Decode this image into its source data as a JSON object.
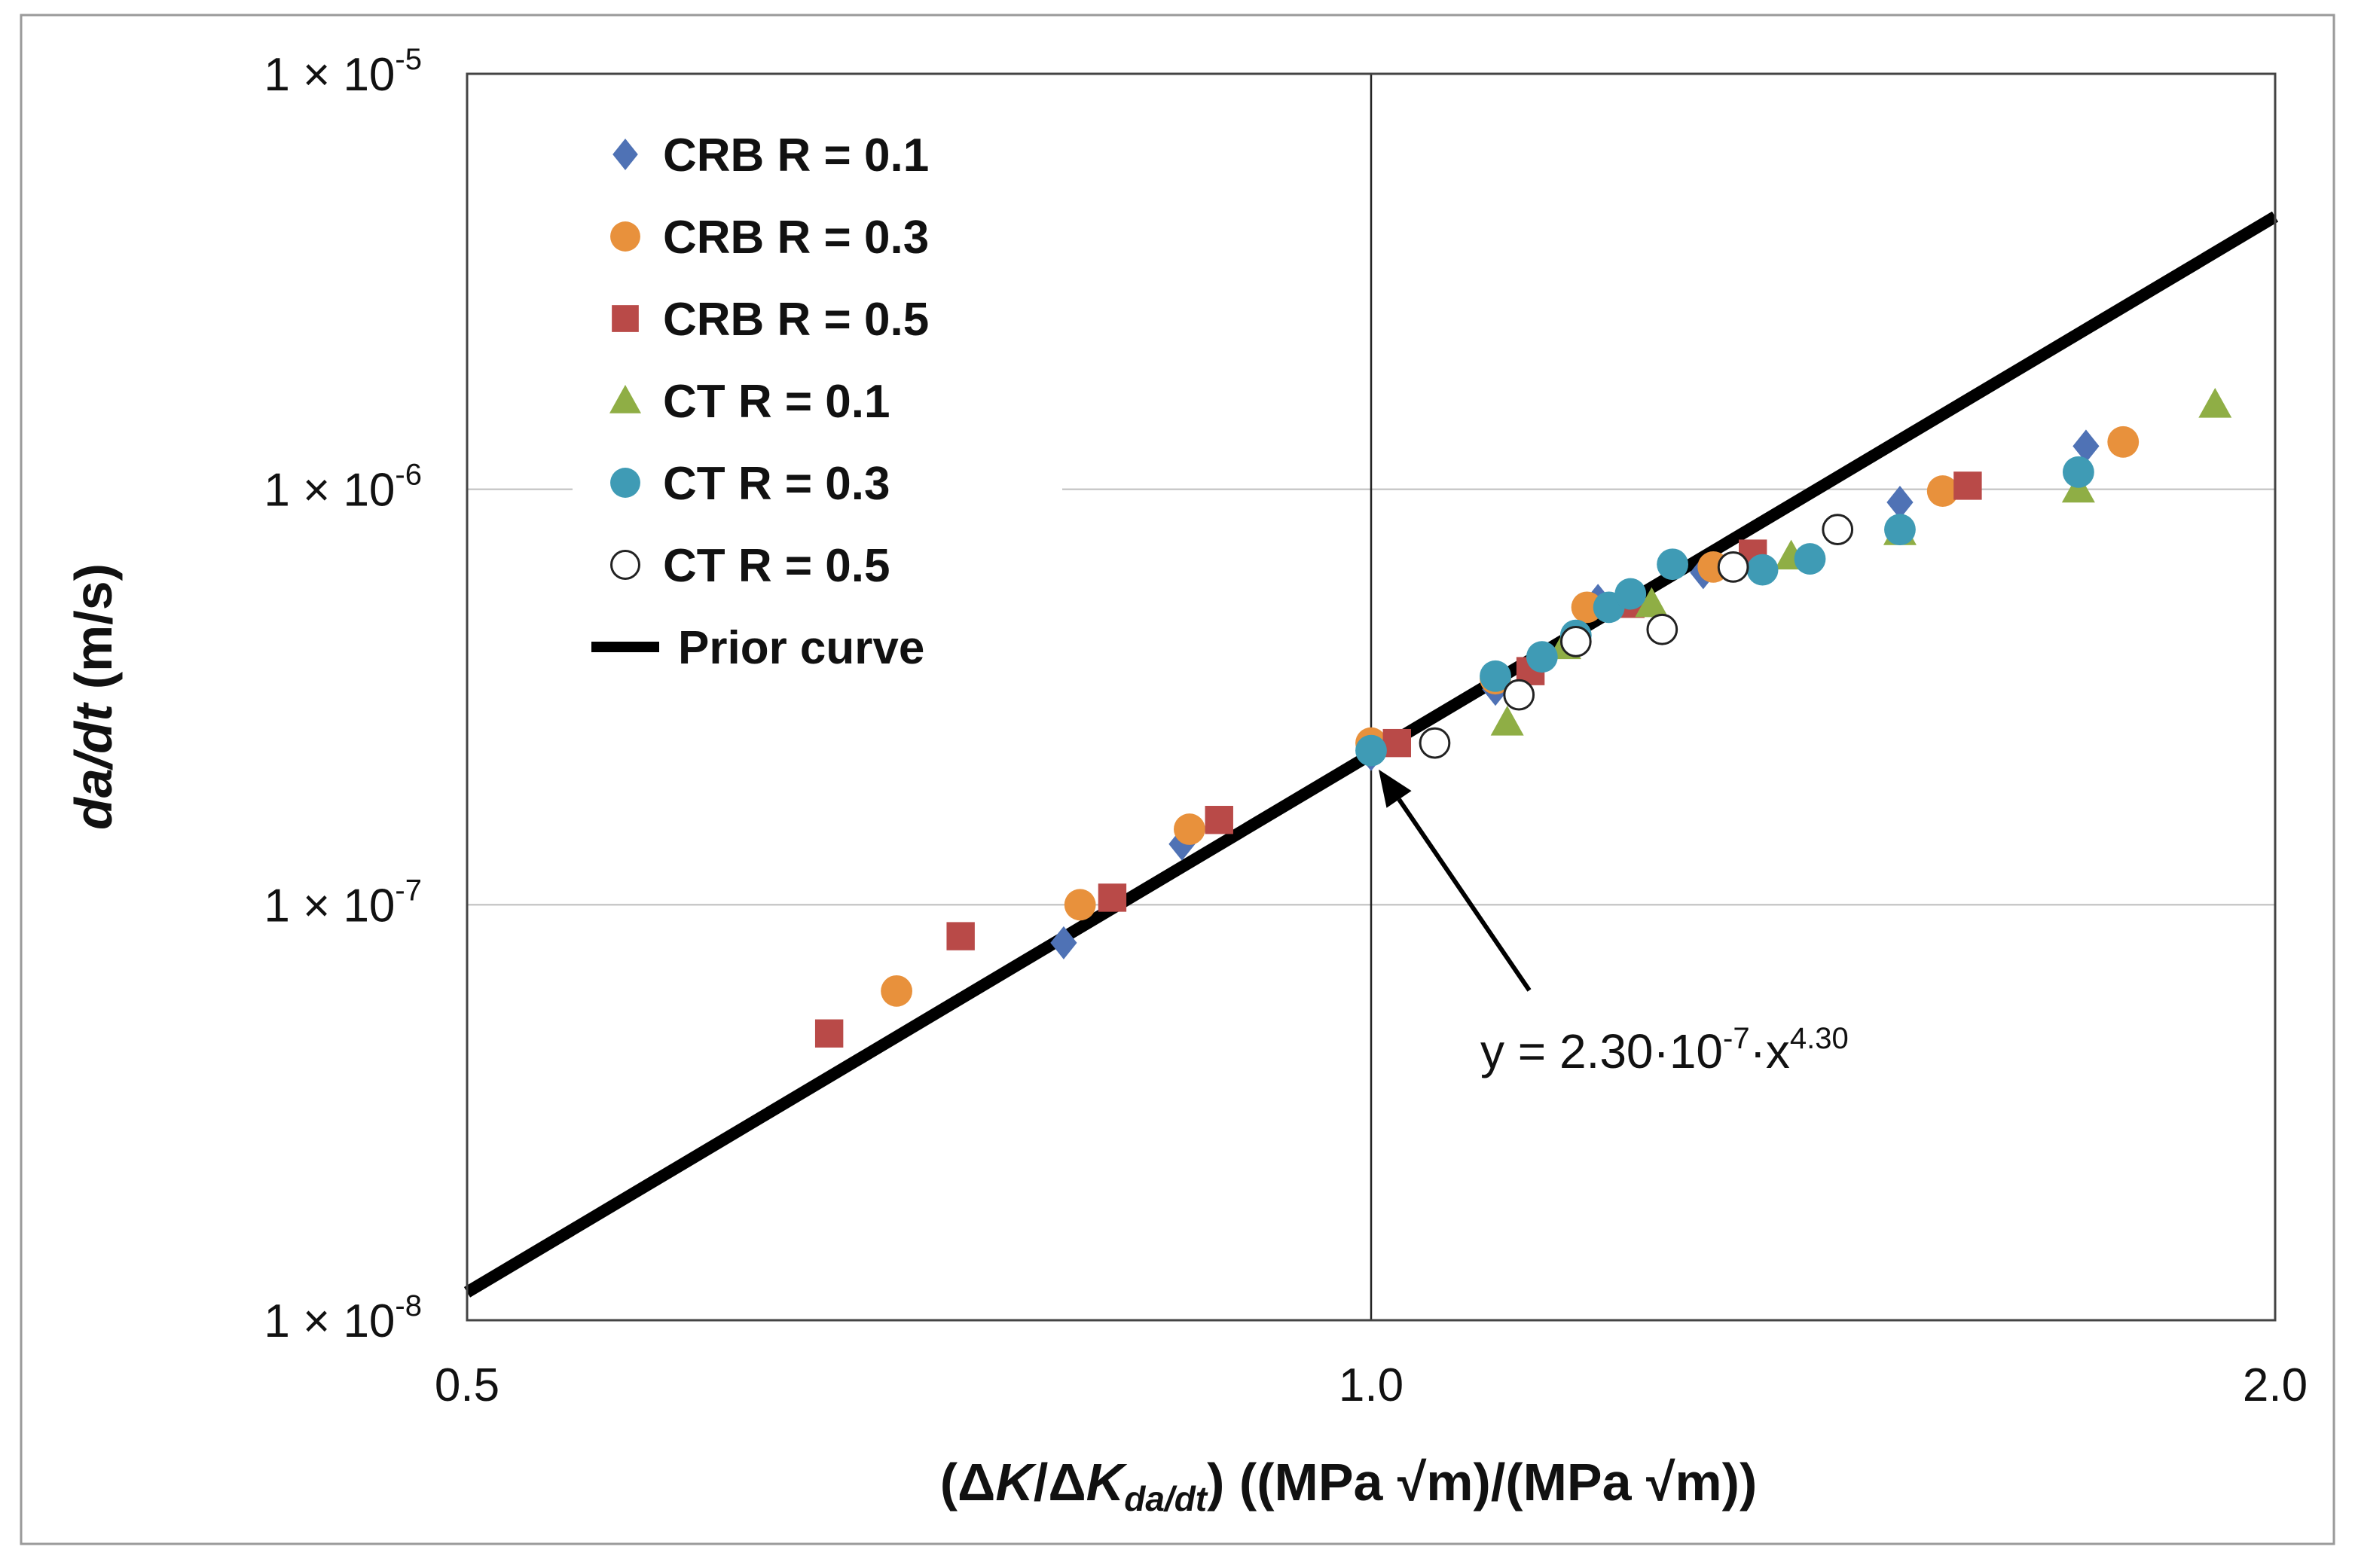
{
  "chart_data": {
    "type": "scatter",
    "x_scale": "log",
    "y_scale": "log",
    "xlim": [
      0.5,
      2.0
    ],
    "ylim": [
      1e-08,
      1e-05
    ],
    "x_ticks": [
      {
        "value": 0.5,
        "label": "0.5"
      },
      {
        "value": 1.0,
        "label": "1.0"
      },
      {
        "value": 2.0,
        "label": "2.0"
      }
    ],
    "y_ticks": [
      {
        "value": 1e-05,
        "mantissa": "1 × 10",
        "exponent": "-5"
      },
      {
        "value": 1e-06,
        "mantissa": "1 × 10",
        "exponent": "-6"
      },
      {
        "value": 1e-07,
        "mantissa": "1 × 10",
        "exponent": "-7"
      },
      {
        "value": 1e-08,
        "mantissa": "1 × 10",
        "exponent": "-8"
      }
    ],
    "ylabel": {
      "italic": "da/dt",
      "rest": " (m/s)"
    },
    "xlabel": {
      "parts": [
        "(Δ",
        "K",
        "/Δ",
        "K",
        "da/dt",
        ") ((MPa √m)/(MPa √m))"
      ]
    },
    "grid": "major",
    "legend_position": "top-left",
    "series": [
      {
        "name": "CRB R = 0.1",
        "marker": "diamond",
        "color": "#4f72b5",
        "points": [
          [
            0.79,
            8.1e-08
          ],
          [
            0.865,
            1.4e-07
          ],
          [
            1.0,
            2.3e-07
          ],
          [
            1.1,
            3.3e-07
          ],
          [
            1.19,
            5.4e-07
          ],
          [
            1.29,
            6.3e-07
          ],
          [
            1.5,
            9.3e-07
          ],
          [
            1.73,
            1.27e-06
          ]
        ]
      },
      {
        "name": "CRB R = 0.3",
        "marker": "circle",
        "color": "#e8913c",
        "points": [
          [
            0.695,
            6.2e-08
          ],
          [
            0.8,
            1e-07
          ],
          [
            0.87,
            1.52e-07
          ],
          [
            1.0,
            2.45e-07
          ],
          [
            1.1,
            3.5e-07
          ],
          [
            1.18,
            5.2e-07
          ],
          [
            1.3,
            6.5e-07
          ],
          [
            1.55,
            9.9e-07
          ],
          [
            1.78,
            1.3e-06
          ]
        ]
      },
      {
        "name": "CRB R = 0.5",
        "marker": "square",
        "color": "#b94a48",
        "points": [
          [
            0.66,
            4.9e-08
          ],
          [
            0.73,
            8.4e-08
          ],
          [
            0.82,
            1.04e-07
          ],
          [
            0.89,
            1.6e-07
          ],
          [
            1.02,
            2.45e-07
          ],
          [
            1.13,
            3.65e-07
          ],
          [
            1.22,
            5.3e-07
          ],
          [
            1.34,
            7e-07
          ],
          [
            1.58,
            1.02e-06
          ]
        ]
      },
      {
        "name": "CT R = 0.1",
        "marker": "triangle",
        "color": "#8fae45",
        "points": [
          [
            1.11,
            2.75e-07
          ],
          [
            1.16,
            4.2e-07
          ],
          [
            1.24,
            5.3e-07
          ],
          [
            1.38,
            6.9e-07
          ],
          [
            1.5,
            7.9e-07
          ],
          [
            1.72,
            1e-06
          ],
          [
            1.91,
            1.6e-06
          ]
        ]
      },
      {
        "name": "CT R = 0.3",
        "marker": "circle",
        "color": "#3f9bb5",
        "points": [
          [
            1.0,
            2.35e-07
          ],
          [
            1.1,
            3.55e-07
          ],
          [
            1.14,
            3.95e-07
          ],
          [
            1.17,
            4.45e-07
          ],
          [
            1.2,
            5.2e-07
          ],
          [
            1.22,
            5.6e-07
          ],
          [
            1.26,
            6.6e-07
          ],
          [
            1.35,
            6.4e-07
          ],
          [
            1.4,
            6.8e-07
          ],
          [
            1.5,
            8e-07
          ],
          [
            1.72,
            1.1e-06
          ]
        ]
      },
      {
        "name": "CT R = 0.5",
        "marker": "open-circle",
        "color": "#222222",
        "points": [
          [
            1.05,
            2.45e-07
          ],
          [
            1.12,
            3.2e-07
          ],
          [
            1.17,
            4.3e-07
          ],
          [
            1.25,
            4.6e-07
          ],
          [
            1.32,
            6.5e-07
          ],
          [
            1.43,
            8e-07
          ]
        ]
      }
    ],
    "fit_line": {
      "name": "Prior curve",
      "color": "#000000",
      "a": 2.3e-07,
      "b": 4.3
    },
    "annotation": {
      "base": "y = 2.30·10",
      "exp1": "-7",
      "mid": "·x",
      "exp2": "4.30",
      "arrow_to": [
        1.0,
        2.3e-07
      ]
    }
  }
}
